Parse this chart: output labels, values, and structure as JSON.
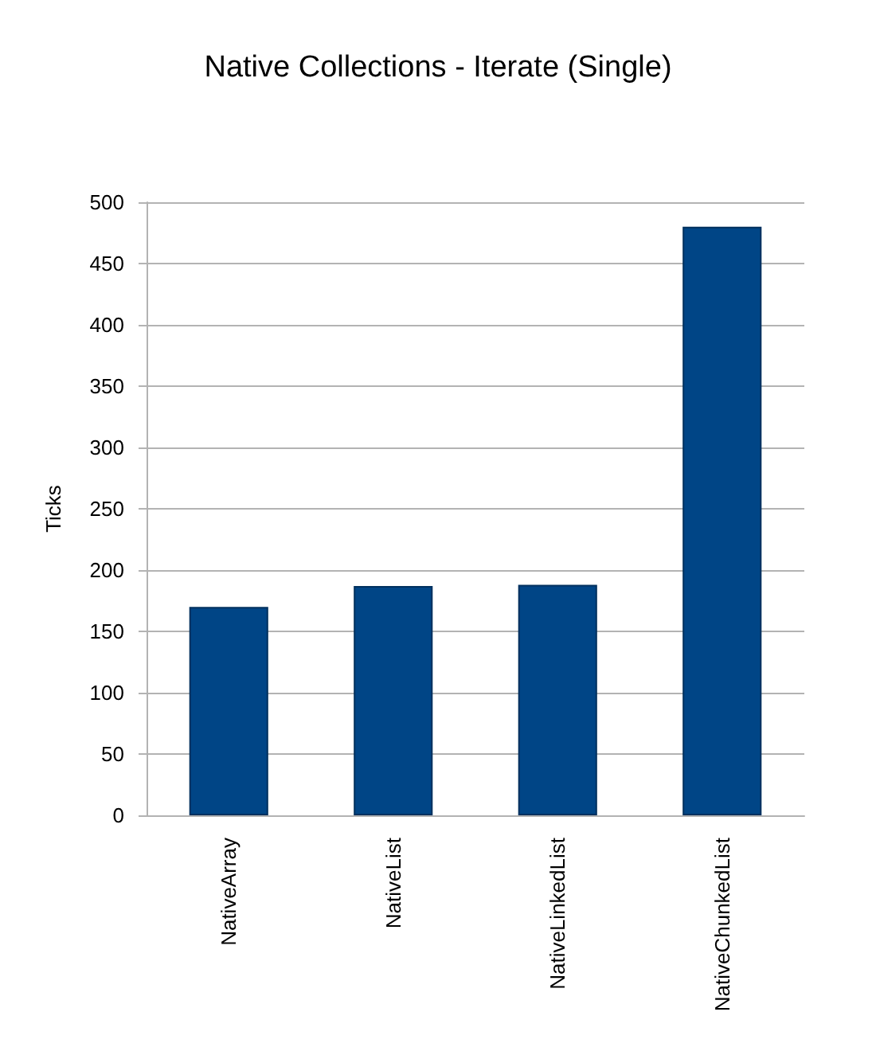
{
  "chart_data": {
    "type": "bar",
    "title": "Native Collections - Iterate (Single)",
    "ylabel": "Ticks",
    "categories": [
      "NativeArray",
      "NativeList",
      "NativeLinkedList",
      "NativeChunkedList"
    ],
    "values": [
      170,
      187,
      188,
      480
    ],
    "color": "#004586",
    "ylim": [
      0,
      500
    ],
    "yticks": [
      0,
      50,
      100,
      150,
      200,
      250,
      300,
      350,
      400,
      450,
      500
    ],
    "grid": "y"
  }
}
